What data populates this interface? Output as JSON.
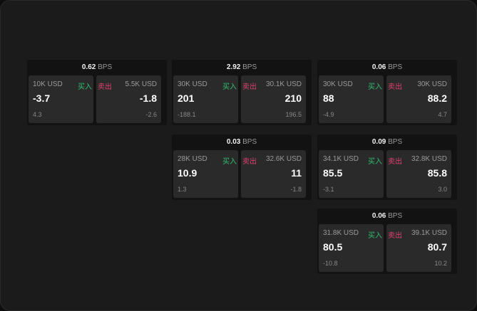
{
  "bps_unit": "BPS",
  "buy_label": "买入",
  "sell_label": "卖出",
  "colors": {
    "buy": "#2fbf71",
    "sell": "#e0406e"
  },
  "cards": [
    {
      "spread": "0.62",
      "bid_size": "10K USD",
      "bid": "-3.7",
      "bid_change": "4.3",
      "ask_size": "5.5K USD",
      "ask": "-1.8",
      "ask_change": "-2.6"
    },
    {
      "spread": "2.92",
      "bid_size": "30K USD",
      "bid": "201",
      "bid_change": "-188.1",
      "ask_size": "30.1K USD",
      "ask": "210",
      "ask_change": "196.5"
    },
    {
      "spread": "0.06",
      "bid_size": "30K USD",
      "bid": "88",
      "bid_change": "-4.9",
      "ask_size": "30K USD",
      "ask": "88.2",
      "ask_change": "4.7"
    },
    {
      "spread": "0.03",
      "bid_size": "28K USD",
      "bid": "10.9",
      "bid_change": "1.3",
      "ask_size": "32.6K USD",
      "ask": "11",
      "ask_change": "-1.8"
    },
    {
      "spread": "0.09",
      "bid_size": "34.1K USD",
      "bid": "85.5",
      "bid_change": "-3.1",
      "ask_size": "32.8K USD",
      "ask": "85.8",
      "ask_change": "3.0"
    },
    {
      "spread": "0.06",
      "bid_size": "31.8K USD",
      "bid": "80.5",
      "bid_change": "-10.8",
      "ask_size": "39.1K USD",
      "ask": "80.7",
      "ask_change": "10.2"
    }
  ]
}
